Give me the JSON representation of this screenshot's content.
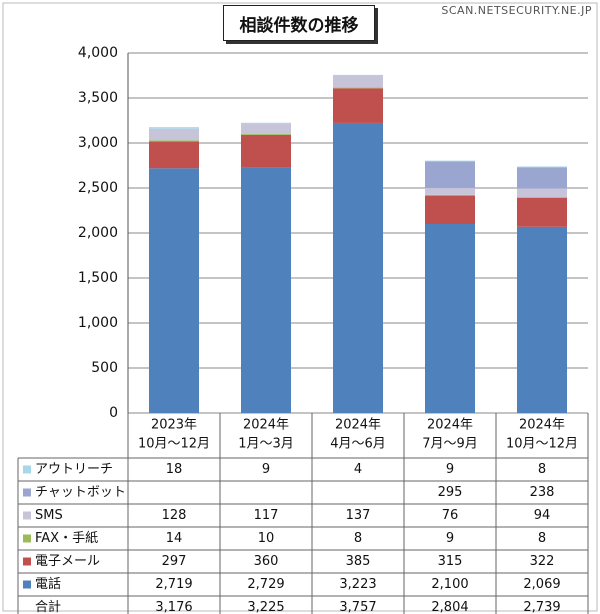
{
  "source": "SCAN.NETSECURITY.NE.JP",
  "chart_data": {
    "type": "bar",
    "stacked": true,
    "title": "相談件数の推移",
    "ylim": [
      0,
      4000
    ],
    "yticks": [
      "0",
      "500",
      "1,000",
      "1,500",
      "2,000",
      "2,500",
      "3,000",
      "3,500",
      "4,000"
    ],
    "categories": [
      [
        "2023年",
        "10月～12月"
      ],
      [
        "2024年",
        "1月～3月"
      ],
      [
        "2024年",
        "4月～6月"
      ],
      [
        "2024年",
        "7月～9月"
      ],
      [
        "2024年",
        "10月～12月"
      ]
    ],
    "series": [
      {
        "name": "電話",
        "color": "#4f81bd",
        "values": [
          2719,
          2729,
          3223,
          2100,
          2069
        ],
        "labels": [
          "2,719",
          "2,729",
          "3,223",
          "2,100",
          "2,069"
        ]
      },
      {
        "name": "電子メール",
        "color": "#c0504d",
        "values": [
          297,
          360,
          385,
          315,
          322
        ],
        "labels": [
          "297",
          "360",
          "385",
          "315",
          "322"
        ]
      },
      {
        "name": "FAX・手紙",
        "color": "#9bbb59",
        "values": [
          14,
          10,
          8,
          9,
          8
        ],
        "labels": [
          "14",
          "10",
          "8",
          "9",
          "8"
        ]
      },
      {
        "name": "SMS",
        "color": "#c7c3d9",
        "values": [
          128,
          117,
          137,
          76,
          94
        ],
        "labels": [
          "128",
          "117",
          "137",
          "76",
          "94"
        ]
      },
      {
        "name": "チャットボット",
        "color": "#9aa6cf",
        "values": [
          0,
          0,
          0,
          295,
          238
        ],
        "labels": [
          "",
          "",
          "",
          "295",
          "238"
        ]
      },
      {
        "name": "アウトリーチ",
        "color": "#a8d7e8",
        "values": [
          18,
          9,
          4,
          9,
          8
        ],
        "labels": [
          "18",
          "9",
          "4",
          "9",
          "8"
        ]
      }
    ],
    "table_order": [
      "アウトリーチ",
      "チャットボット",
      "SMS",
      "FAX・手紙",
      "電子メール",
      "電話"
    ],
    "total": {
      "name": "合計",
      "values": [
        3176,
        3225,
        3757,
        2804,
        2739
      ],
      "labels": [
        "3,176",
        "3,225",
        "3,757",
        "2,804",
        "2,739"
      ]
    }
  }
}
